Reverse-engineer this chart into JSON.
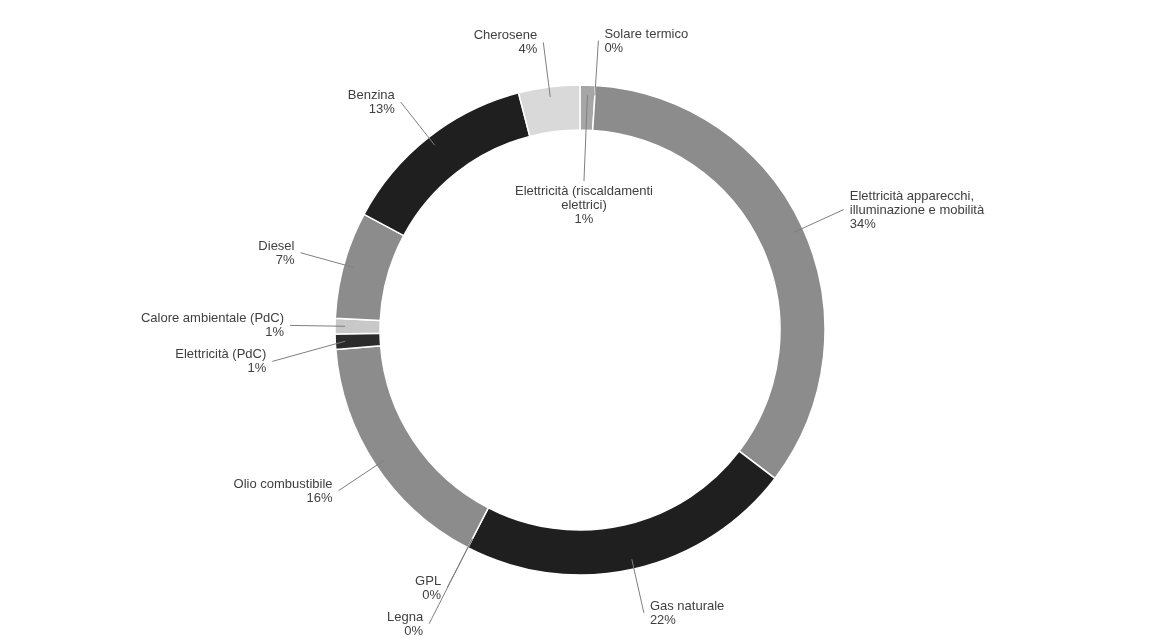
{
  "chart_data": {
    "type": "donut",
    "categories": [
      "Elettricità (riscaldamenti elettrici)",
      "Solare termico",
      "Elettricità apparecchi, illuminazione  e mobilità",
      "Gas naturale",
      "GPL",
      "Legna",
      "Olio combustibile",
      "Elettricità (PdC)",
      "Calore ambientale  (PdC)",
      "Diesel",
      "Benzina",
      "Cherosene"
    ],
    "values": [
      1,
      0,
      34,
      22,
      0,
      0,
      16,
      1,
      1,
      7,
      13,
      4
    ],
    "value_labels": [
      "1%",
      "0%",
      "34%",
      "22%",
      "0%",
      "0%",
      "16%",
      "1%",
      "1%",
      "7%",
      "13%",
      "4%"
    ],
    "colors": [
      "#a6a6a6",
      "#cfcfcf",
      "#8c8c8c",
      "#1f1f1f",
      "#d9d9d9",
      "#e6e6e6",
      "#8c8c8c",
      "#2b2b2b",
      "#c8c8c8",
      "#8c8c8c",
      "#1f1f1f",
      "#d9d9d9"
    ],
    "legend": false
  }
}
